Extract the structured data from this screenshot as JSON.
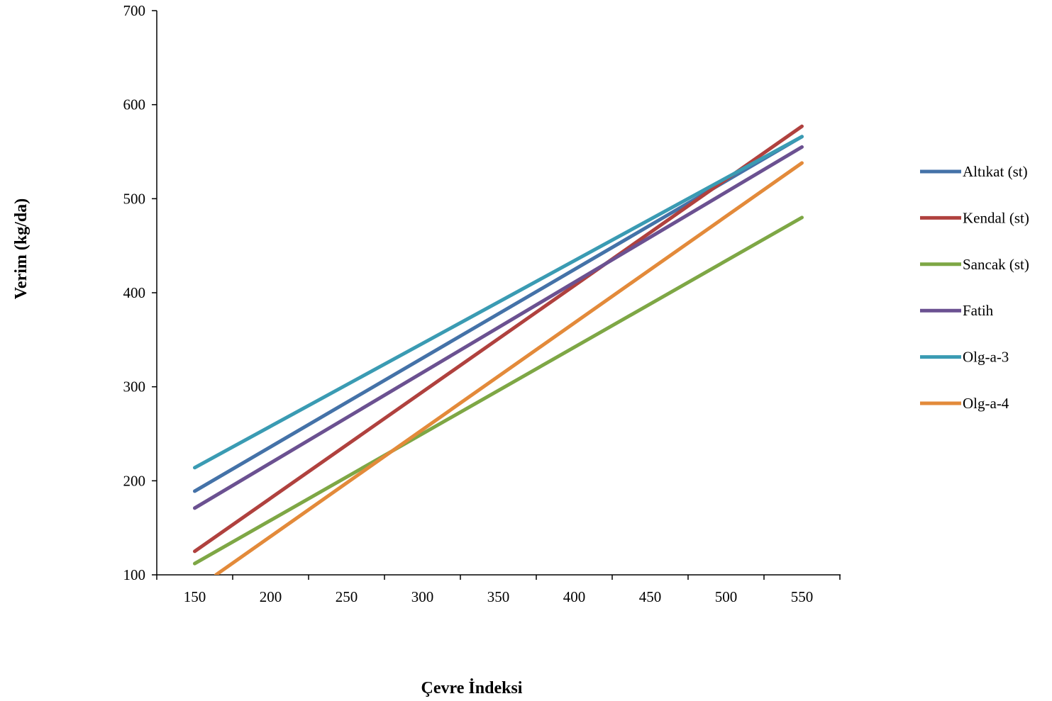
{
  "chart_data": {
    "type": "line",
    "xlabel": "Çevre İndeksi",
    "ylabel": "Verim (kg/da)",
    "x_ticks": [
      "150",
      "200",
      "250",
      "300",
      "350",
      "400",
      "450",
      "500",
      "550"
    ],
    "y_ticks": [
      "100",
      "200",
      "300",
      "400",
      "500",
      "600",
      "700"
    ],
    "xlim": [
      125,
      575
    ],
    "ylim": [
      100,
      700
    ],
    "grid": false,
    "legend_position": "right",
    "series": [
      {
        "name": "Altıkat (st)",
        "color": "#4472a8",
        "x": [
          150,
          550
        ],
        "y": [
          189,
          566
        ]
      },
      {
        "name": "Kendal (st)",
        "color": "#b0413e",
        "x": [
          150,
          550
        ],
        "y": [
          125,
          577
        ]
      },
      {
        "name": "Sancak (st)",
        "color": "#7ea745",
        "x": [
          150,
          550
        ],
        "y": [
          112,
          480
        ]
      },
      {
        "name": "Fatih",
        "color": "#6b5191",
        "x": [
          150,
          550
        ],
        "y": [
          171,
          555
        ]
      },
      {
        "name": "Olg-a-3",
        "color": "#3a9bb3",
        "x": [
          150,
          550
        ],
        "y": [
          214,
          566
        ]
      },
      {
        "name": "Olg-a-4",
        "color": "#e38a3a",
        "x": [
          164,
          550
        ],
        "y": [
          100,
          538
        ]
      }
    ]
  }
}
